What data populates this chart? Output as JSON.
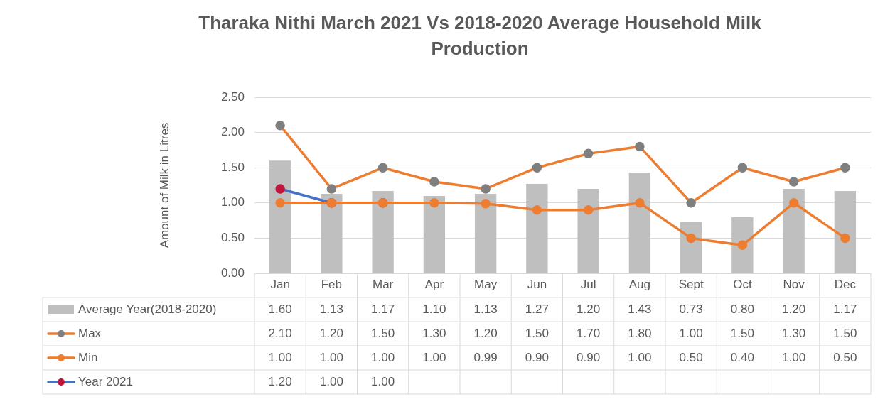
{
  "chart_data": {
    "type": "bar",
    "title": "Tharaka Nithi March 2021 Vs 2018-2020  Average Household Milk Production",
    "ylabel": "Amount of Milk in Litres",
    "categories": [
      "Jan",
      "Feb",
      "Mar",
      "Apr",
      "May",
      "Jun",
      "Jul",
      "Aug",
      "Sept",
      "Oct",
      "Nov",
      "Dec"
    ],
    "series": [
      {
        "name": "Average Year(2018-2020)",
        "color": "#bfbfbf",
        "values": [
          1.6,
          1.13,
          1.17,
          1.1,
          1.13,
          1.27,
          1.2,
          1.43,
          0.73,
          0.8,
          1.2,
          1.17
        ],
        "value_labels": [
          "1.60",
          "1.13",
          "1.17",
          "1.10",
          "1.13",
          "1.27",
          "1.20",
          "1.43",
          "0.73",
          "0.80",
          "1.20",
          "1.17"
        ]
      },
      {
        "name": "Max",
        "type": "line",
        "color": "#ed7d31",
        "colors": [
          "#7f7f7f",
          "#7f7f7f",
          "#7f7f7f",
          "#7f7f7f",
          "#7f7f7f",
          "#7f7f7f",
          "#7f7f7f",
          "#7f7f7f",
          "#7f7f7f",
          "#7f7f7f",
          "#7f7f7f",
          "#7f7f7f"
        ],
        "values": [
          2.1,
          1.2,
          1.5,
          1.3,
          1.2,
          1.5,
          1.7,
          1.8,
          1.0,
          1.5,
          1.3,
          1.5
        ],
        "value_labels": [
          "2.10",
          "1.20",
          "1.50",
          "1.30",
          "1.20",
          "1.50",
          "1.70",
          "1.80",
          "1.00",
          "1.50",
          "1.30",
          "1.50"
        ]
      },
      {
        "name": "Min",
        "type": "line",
        "color": "#ed7d31",
        "values": [
          1.0,
          1.0,
          1.0,
          1.0,
          0.99,
          0.9,
          0.9,
          1.0,
          0.5,
          0.4,
          1.0,
          0.5
        ],
        "value_labels": [
          "1.00",
          "1.00",
          "1.00",
          "1.00",
          "0.99",
          "0.90",
          "0.90",
          "1.00",
          "0.50",
          "0.40",
          "1.00",
          "0.50"
        ]
      },
      {
        "name": "Year 2021",
        "type": "line",
        "color": "#4472c4",
        "colors": [
          "#c0143c",
          "#c0143c",
          "#c0143c",
          null,
          null,
          null,
          null,
          null,
          null,
          null,
          null,
          null
        ],
        "values": [
          1.2,
          1.0,
          1.0,
          null,
          null,
          null,
          null,
          null,
          null,
          null,
          null,
          null
        ],
        "value_labels": [
          "1.20",
          "1.00",
          "1.00",
          null,
          null,
          null,
          null,
          null,
          null,
          null,
          null,
          null
        ]
      }
    ],
    "ylim": [
      0,
      2.5
    ],
    "yticks": [
      {
        "value": 0,
        "label": "0.00"
      },
      {
        "value": 0.5,
        "label": "0.50"
      },
      {
        "value": 1,
        "label": "1.00"
      },
      {
        "value": 1.5,
        "label": "1.50"
      },
      {
        "value": 2,
        "label": "2.00"
      },
      {
        "value": 2.5,
        "label": "2.50"
      }
    ],
    "grid": "y",
    "legend": "bottom",
    "marker": "circle",
    "line_style": "solid"
  }
}
